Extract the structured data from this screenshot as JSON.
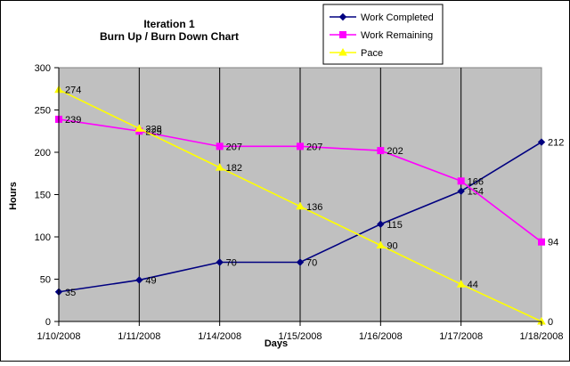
{
  "chart_data": {
    "type": "line",
    "title_lines": [
      "Iteration 1",
      "Burn Up / Burn Down Chart"
    ],
    "xlabel": "Days",
    "ylabel": "Hours",
    "categories": [
      "1/10/2008",
      "1/11/2008",
      "1/14/2008",
      "1/15/2008",
      "1/16/2008",
      "1/17/2008",
      "1/18/2008"
    ],
    "ylim": [
      0,
      300
    ],
    "yticks": [
      0,
      50,
      100,
      150,
      200,
      250,
      300
    ],
    "grid": "vertical",
    "legend_position": "top-right",
    "series": [
      {
        "name": "Work Completed",
        "color": "#000080",
        "marker": "diamond",
        "values": [
          35,
          49,
          70,
          70,
          115,
          154,
          212
        ],
        "labels": [
          "35",
          "49",
          "70",
          "70",
          "115",
          "154",
          "212"
        ]
      },
      {
        "name": "Work Remaining",
        "color": "#ff00ff",
        "marker": "square",
        "values": [
          239,
          225,
          207,
          207,
          202,
          166,
          94
        ],
        "labels": [
          "239",
          "225",
          "207",
          "207",
          "202",
          "166",
          "94"
        ]
      },
      {
        "name": "Pace",
        "color": "#ffff00",
        "marker": "triangle",
        "values": [
          274,
          228,
          182,
          136,
          90,
          44,
          0
        ],
        "labels": [
          "274",
          "228",
          "182",
          "136",
          "90",
          "44",
          "0"
        ]
      }
    ]
  }
}
